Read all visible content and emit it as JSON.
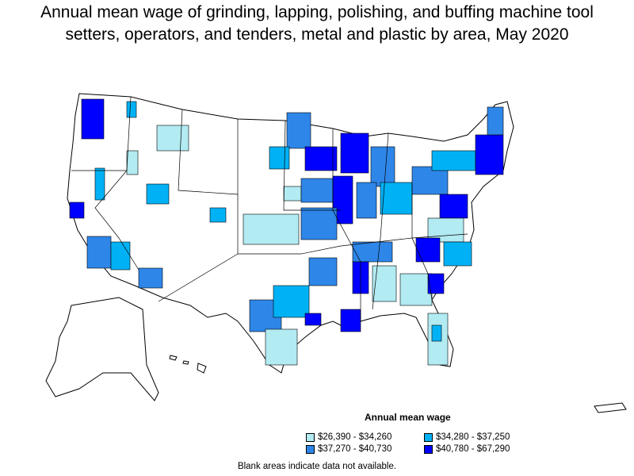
{
  "title": {
    "line1": "Annual mean wage of grinding, lapping, polishing, and buffing machine tool",
    "line2": "setters, operators, and tenders, metal and plastic by area, May 2020"
  },
  "legend": {
    "title": "Annual mean wage",
    "items": [
      {
        "label": "$26,390 - $34,260",
        "color": "#b2ebf2"
      },
      {
        "label": "$34,280 - $37,250",
        "color": "#00b2f5"
      },
      {
        "label": "$37,270 - $40,730",
        "color": "#2e86e8"
      },
      {
        "label": "$40,780 - $67,290",
        "color": "#0000ff"
      }
    ]
  },
  "note": "Blank areas indicate data not available.",
  "map_regions": [
    {
      "name": "Washington",
      "tier": 4
    },
    {
      "name": "Northern California",
      "tier": 4
    },
    {
      "name": "Southern California",
      "tier": 2
    },
    {
      "name": "Arizona",
      "tier": 3
    },
    {
      "name": "Kansas",
      "tier": 1
    },
    {
      "name": "Minnesota",
      "tier": 3
    },
    {
      "name": "Wisconsin",
      "tier": 4
    },
    {
      "name": "Michigan",
      "tier": 4
    },
    {
      "name": "Texas",
      "tier": 3
    },
    {
      "name": "Louisiana",
      "tier": 4
    },
    {
      "name": "New England",
      "tier": 4
    },
    {
      "name": "Florida",
      "tier": 1
    }
  ]
}
